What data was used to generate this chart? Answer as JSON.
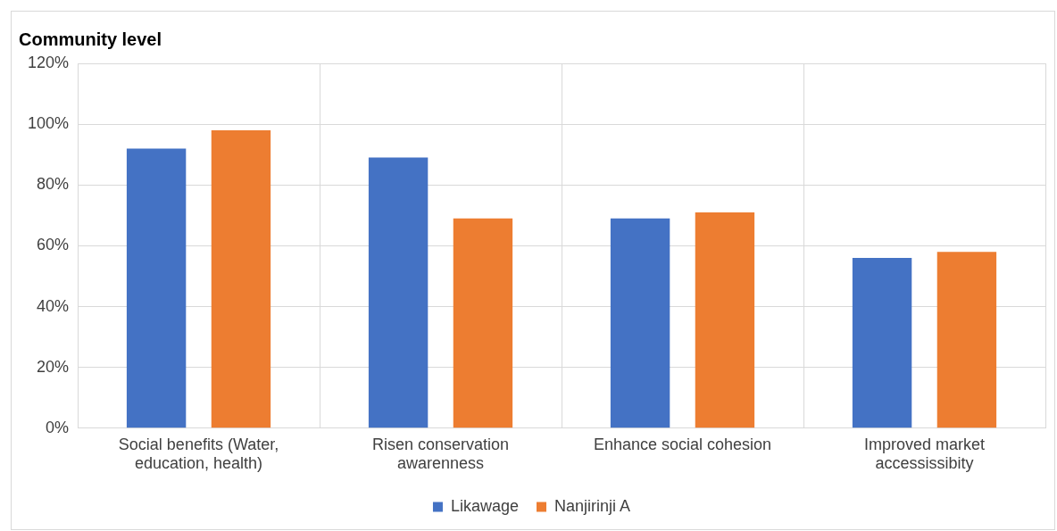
{
  "chart_data": {
    "type": "bar",
    "title": "Community level",
    "categories": [
      "Social benefits (Water, education, health)",
      "Risen conservation awarenness",
      "Enhance social cohesion",
      "Improved market accessissibity"
    ],
    "series": [
      {
        "name": "Likawage",
        "color": "#4472c4",
        "values": [
          92,
          89,
          69,
          56
        ]
      },
      {
        "name": "Nanjirinji A",
        "color": "#ed7d31",
        "values": [
          98,
          69,
          71,
          58
        ]
      }
    ],
    "ylim": [
      0,
      120
    ],
    "yticks": [
      {
        "value": 0,
        "label": "0%"
      },
      {
        "value": 20,
        "label": "20%"
      },
      {
        "value": 40,
        "label": "40%"
      },
      {
        "value": 60,
        "label": "60%"
      },
      {
        "value": 80,
        "label": "80%"
      },
      {
        "value": 100,
        "label": "100%"
      },
      {
        "value": 120,
        "label": "120%"
      }
    ],
    "grid": true,
    "legend": "bottom"
  }
}
